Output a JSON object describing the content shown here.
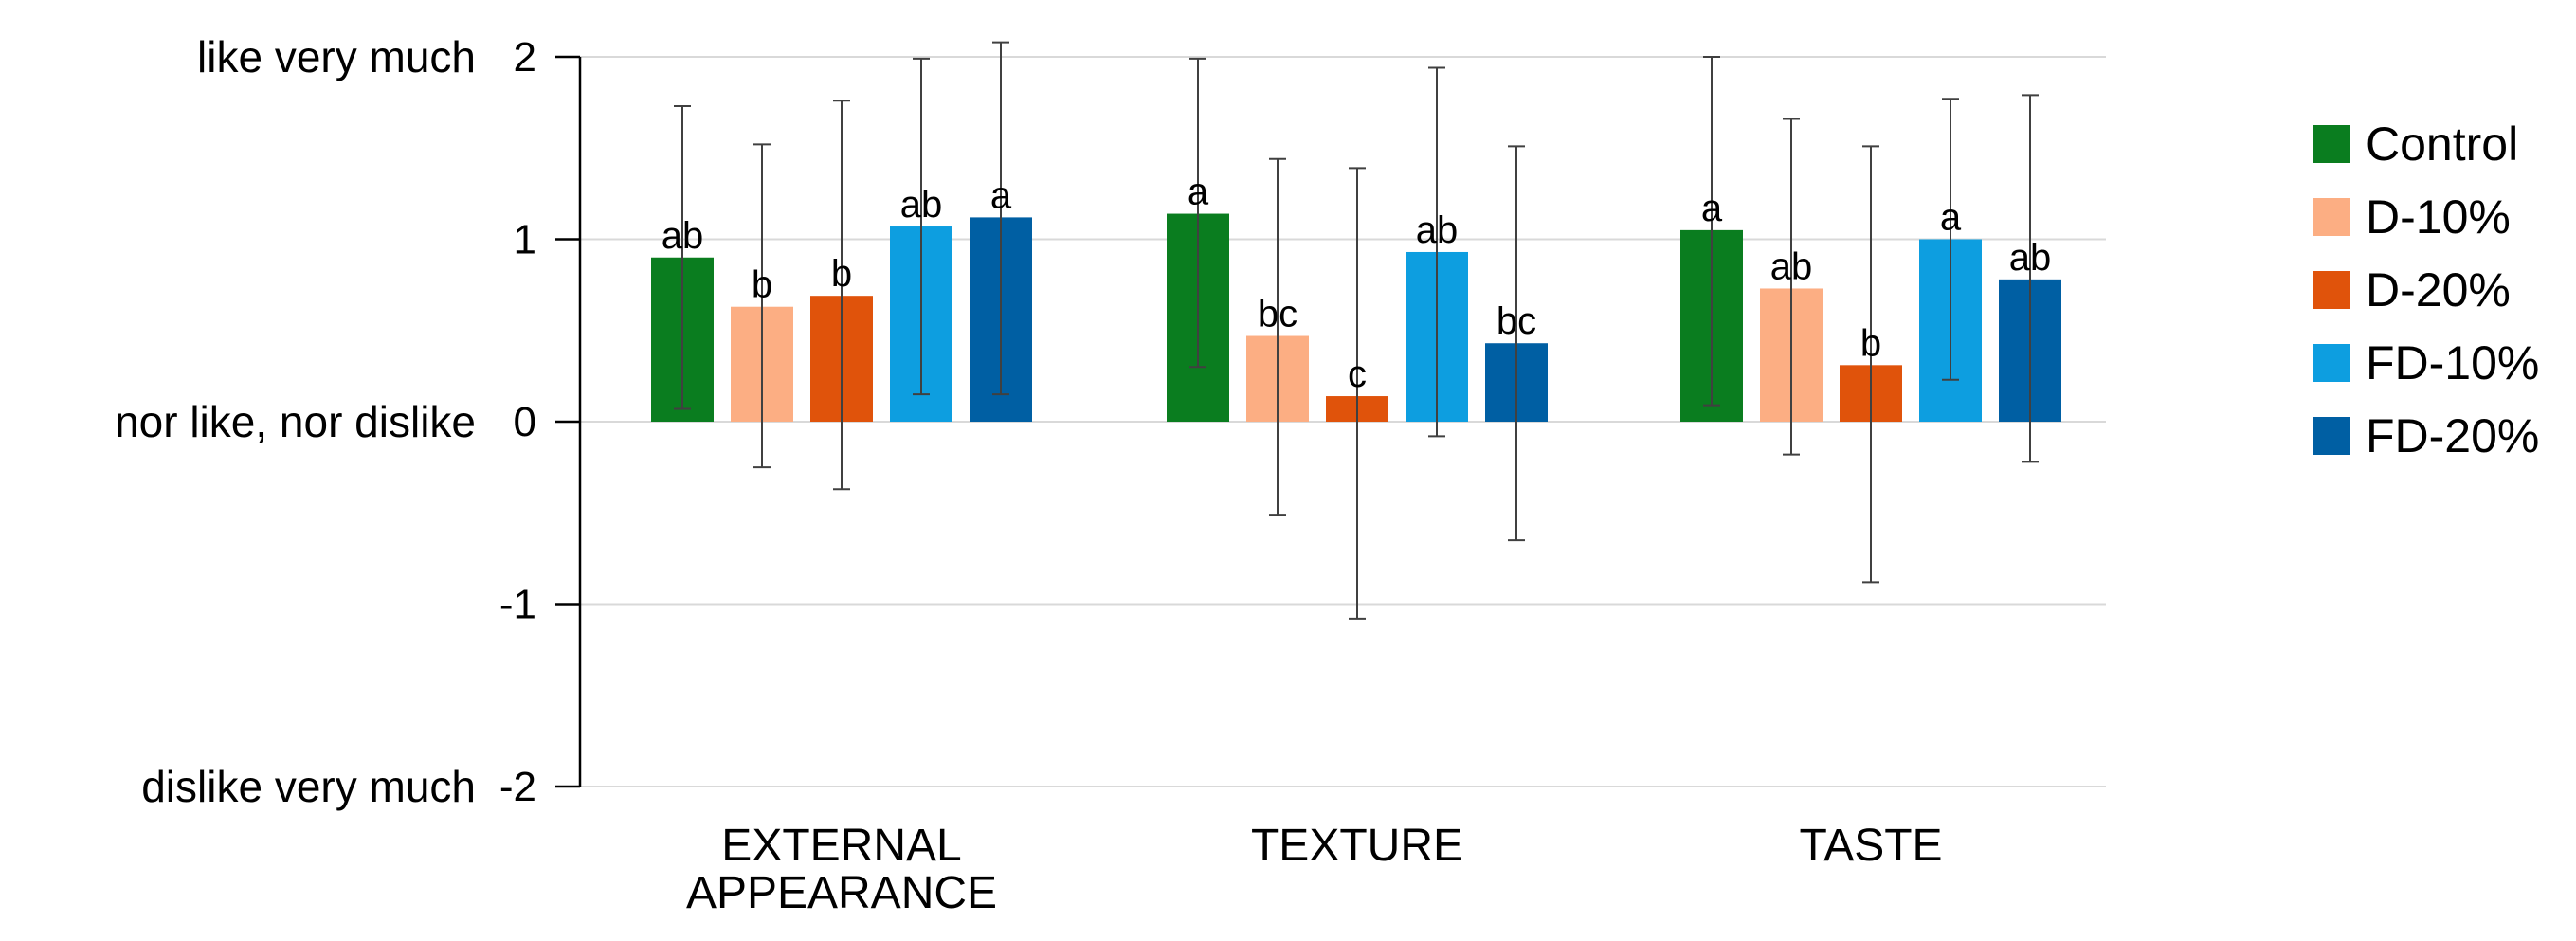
{
  "chart_data": {
    "type": "bar",
    "title": "",
    "xlabel": "",
    "ylabel": "",
    "ylim": [
      -2,
      2
    ],
    "yticks": [
      2,
      1,
      0,
      -1,
      -2
    ],
    "scale_labels": [
      {
        "value": 2,
        "text": "like very much"
      },
      {
        "value": 0,
        "text": "nor like, nor dislike"
      },
      {
        "value": -2,
        "text": "dislike very much"
      }
    ],
    "categories": [
      {
        "lines": [
          "EXTERNAL",
          "APPEARANCE"
        ]
      },
      {
        "lines": [
          "TEXTURE"
        ]
      },
      {
        "lines": [
          "TASTE"
        ]
      }
    ],
    "grid": true,
    "legend_position": "right",
    "series": [
      {
        "name": "Control",
        "color": "#0a7d1f",
        "values": [
          0.9,
          1.14,
          1.05
        ],
        "errors": [
          [
            0.07,
            1.73
          ],
          [
            0.3,
            1.99
          ],
          [
            0.09,
            2.0
          ]
        ],
        "labels": [
          "ab",
          "a",
          "a"
        ]
      },
      {
        "name": "D-10%",
        "color": "#fcae83",
        "values": [
          0.63,
          0.47,
          0.73
        ],
        "errors": [
          [
            -0.25,
            1.52
          ],
          [
            -0.51,
            1.44
          ],
          [
            -0.18,
            1.66
          ]
        ],
        "labels": [
          "b",
          "bc",
          "ab"
        ]
      },
      {
        "name": "D-20%",
        "color": "#e0530b",
        "values": [
          0.69,
          0.14,
          0.31
        ],
        "errors": [
          [
            -0.37,
            1.76
          ],
          [
            -1.08,
            1.39
          ],
          [
            -0.88,
            1.51
          ]
        ],
        "labels": [
          "b",
          "c",
          "b"
        ]
      },
      {
        "name": "FD-10%",
        "color": "#0d9ee0",
        "values": [
          1.07,
          0.93,
          1.0
        ],
        "errors": [
          [
            0.15,
            1.99
          ],
          [
            -0.08,
            1.94
          ],
          [
            0.23,
            1.77
          ]
        ],
        "labels": [
          "ab",
          "ab",
          "a"
        ]
      },
      {
        "name": "FD-20%",
        "color": "#005fa3",
        "values": [
          1.12,
          0.43,
          0.78
        ],
        "errors": [
          [
            0.15,
            2.08
          ],
          [
            -0.65,
            1.51
          ],
          [
            -0.22,
            1.79
          ]
        ],
        "labels": [
          "a",
          "bc",
          "ab"
        ]
      }
    ]
  }
}
